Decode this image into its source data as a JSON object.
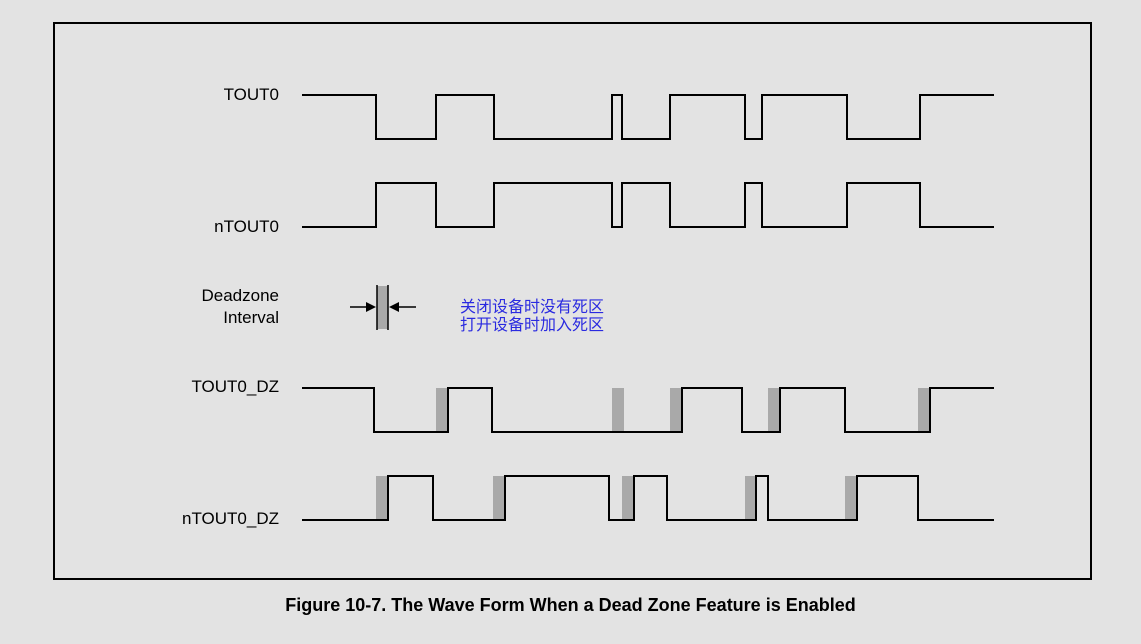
{
  "signals": [
    {
      "key": "tout0",
      "label": "TOUT0"
    },
    {
      "key": "ntout0",
      "label": "nTOUT0"
    },
    {
      "key": "tout0_dz",
      "label": "TOUT0_DZ"
    },
    {
      "key": "ntout0_dz",
      "label": "nTOUT0_DZ"
    }
  ],
  "deadzone": {
    "label_line1": "Deadzone",
    "label_line2": "Interval"
  },
  "notes": {
    "line1": "关闭设备时没有死区",
    "line2": "打开设备时加入死区"
  },
  "caption": "Figure 10-7. The Wave Form When a Dead Zone Feature is Enabled",
  "colors": {
    "background": "#e3e3e3",
    "line": "#000000",
    "deadzone_fill": "#a9a9a9",
    "note_text": "#2a2ae0"
  }
}
